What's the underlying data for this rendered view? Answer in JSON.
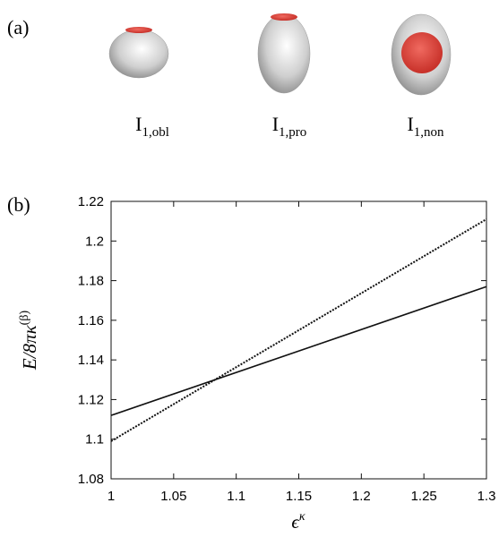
{
  "panel_a": {
    "label": "(a)",
    "captions": [
      {
        "main": "I",
        "sub": "1,obl"
      },
      {
        "main": "I",
        "sub": "1,pro"
      },
      {
        "main": "I",
        "sub": "1,non"
      }
    ]
  },
  "panel_b": {
    "label": "(b)"
  },
  "chart_data": {
    "type": "line",
    "x_label": {
      "main": "ϵ",
      "sup": "κ"
    },
    "y_label": {
      "main": "E/8πκ",
      "sup": "(β)"
    },
    "x": [
      1,
      1.3
    ],
    "series": [
      {
        "color": "#111111",
        "dash": false,
        "values": [
          1.112,
          1.177
        ]
      },
      {
        "color": "#111111",
        "dash": true,
        "values": [
          1.099,
          1.211
        ]
      }
    ],
    "xlim": [
      1,
      1.3
    ],
    "ylim": [
      1.08,
      1.22
    ],
    "xticks": [
      1,
      1.05,
      1.1,
      1.15,
      1.2,
      1.25,
      1.3
    ],
    "yticks": [
      1.08,
      1.1,
      1.12,
      1.14,
      1.16,
      1.18,
      1.2,
      1.22
    ]
  }
}
